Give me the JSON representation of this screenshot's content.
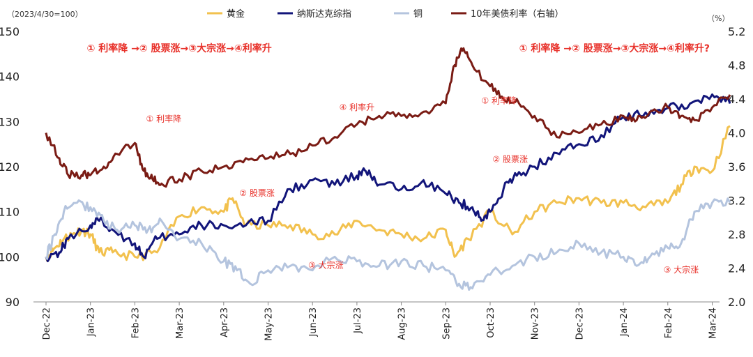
{
  "chart_data": {
    "type": "line",
    "index_note": "（2023/4/30=100）",
    "right_unit": "（%）",
    "x_tick_labels": [
      "Dec-22",
      "Jan-23",
      "Feb-23",
      "Mar-23",
      "Apr-23",
      "May-23",
      "Jun-23",
      "Jul-23",
      "Aug-23",
      "Sep-23",
      "Oct-23",
      "Nov-23",
      "Dec-23",
      "Jan-24",
      "Feb-24",
      "Mar-24"
    ],
    "left_axis": {
      "min": 90,
      "max": 150,
      "ticks": [
        90,
        100,
        110,
        120,
        130,
        140,
        150
      ]
    },
    "right_axis": {
      "min": 2.0,
      "max": 5.2,
      "ticks": [
        "2.0",
        "2.4",
        "2.8",
        "3.2",
        "3.6",
        "4.0",
        "4.4",
        "4.8",
        "5.2"
      ]
    },
    "legend_position": "top",
    "colors": {
      "gold": "#f2c14e",
      "nasdaq": "#12157a",
      "copper": "#b4c4de",
      "yield": "#7a1b14",
      "annotation": "#e8312a"
    },
    "series": [
      {
        "name": "黄金",
        "axis": "left",
        "key": "gold",
        "x": [
          0,
          0.2,
          0.4,
          0.6,
          0.8,
          1,
          1.2,
          1.5,
          2,
          2.5,
          3,
          3.5,
          4,
          4.2,
          4.5,
          5,
          5.5,
          6,
          6.5,
          7,
          7.5,
          8,
          8.5,
          9,
          9.2,
          9.5,
          10,
          10.5,
          11,
          11.5,
          12,
          12.5,
          13,
          13.5,
          14,
          14.3,
          14.6,
          15,
          15.4
        ],
        "values": [
          100,
          102,
          104,
          105,
          106,
          105,
          101,
          101,
          100,
          101,
          109,
          111,
          110,
          113,
          107,
          107,
          107,
          105,
          105,
          108,
          106,
          105,
          104,
          106,
          100,
          104,
          110,
          105,
          110,
          112,
          113,
          112,
          112,
          111,
          112,
          116,
          120,
          119,
          129
        ]
      },
      {
        "name": "纳斯达克综指",
        "axis": "left",
        "key": "nasdaq",
        "x": [
          0,
          0.3,
          0.5,
          1,
          1.2,
          1.5,
          2,
          2.2,
          2.5,
          3,
          3.5,
          4,
          4.5,
          5,
          5.5,
          6,
          6.5,
          7,
          7.2,
          7.5,
          8,
          8.5,
          9,
          9.3,
          9.6,
          9.8,
          10,
          10.3,
          10.6,
          11,
          11.5,
          12,
          12.5,
          13,
          13.5,
          14,
          14.5,
          15,
          15.4
        ],
        "values": [
          100,
          101,
          104,
          107,
          108,
          106,
          103,
          100,
          104,
          105,
          107,
          107,
          107,
          108,
          115,
          117,
          116,
          118,
          119,
          116,
          115,
          117,
          114,
          112,
          111,
          108,
          110,
          115,
          118,
          120,
          123,
          125,
          127,
          131,
          132,
          133,
          134,
          136,
          134
        ]
      },
      {
        "name": "铜",
        "axis": "left",
        "key": "copper",
        "x": [
          0,
          0.2,
          0.4,
          0.7,
          1,
          1.3,
          1.6,
          2,
          2.3,
          2.6,
          3,
          3.5,
          4,
          4.3,
          4.6,
          5,
          5.5,
          6,
          6.5,
          7,
          7.5,
          8,
          8.5,
          9,
          9.3,
          9.6,
          10,
          10.5,
          11,
          11.5,
          12,
          12.5,
          13,
          13.3,
          13.6,
          14,
          14.3,
          14.6,
          15,
          15.4
        ],
        "values": [
          100,
          105,
          110,
          112,
          111,
          108,
          106,
          107,
          106,
          108,
          104,
          103,
          99,
          97,
          94,
          97,
          98,
          97,
          100,
          99,
          98,
          99,
          98,
          97,
          94,
          93,
          96,
          98,
          100,
          101,
          103,
          101,
          100,
          98,
          100,
          102,
          103,
          110,
          112,
          112
        ]
      },
      {
        "name": "10年美债利率（右轴）",
        "axis": "right",
        "key": "yield",
        "x": [
          0,
          0.3,
          0.5,
          0.8,
          1,
          1.3,
          1.6,
          2,
          2.2,
          2.4,
          2.6,
          3,
          3.5,
          4,
          4.5,
          5,
          5.5,
          6,
          6.5,
          7,
          7.5,
          8,
          8.5,
          9,
          9.2,
          9.4,
          9.6,
          10,
          10.3,
          10.6,
          11,
          11.5,
          12,
          12.5,
          13,
          13.3,
          13.6,
          14,
          14.3,
          14.6,
          15,
          15.4
        ],
        "values": [
          4.0,
          3.7,
          3.5,
          3.5,
          3.5,
          3.6,
          3.75,
          3.88,
          3.55,
          3.45,
          3.4,
          3.45,
          3.55,
          3.6,
          3.7,
          3.7,
          3.75,
          3.85,
          3.95,
          4.1,
          4.2,
          4.2,
          4.25,
          4.35,
          4.8,
          5.0,
          4.8,
          4.55,
          4.4,
          4.4,
          4.2,
          3.95,
          4.0,
          4.1,
          4.2,
          4.15,
          4.25,
          4.3,
          4.2,
          4.15,
          4.3,
          4.45
        ]
      }
    ],
    "annotations": [
      {
        "text": "① 利率降 →② 股票涨→③大宗涨→④利率升",
        "x": 3.0,
        "yl": 145.5,
        "anchor": "middle",
        "bold": true
      },
      {
        "text": "① 利率降 →② 股票涨→③大宗涨→④利率升?",
        "x": 12.8,
        "yl": 145.5,
        "anchor": "middle",
        "bold": true
      },
      {
        "text": "① 利率降",
        "x": 2.65,
        "yl": 130.0,
        "anchor": "middle",
        "bold": false
      },
      {
        "text": "④ 利率升",
        "x": 7.0,
        "yl": 132.5,
        "anchor": "middle",
        "bold": false
      },
      {
        "text": "① 利率降",
        "x": 10.2,
        "yl": 134.0,
        "anchor": "middle",
        "bold": false
      },
      {
        "text": "② 股票涨",
        "x": 10.45,
        "yl": 121.0,
        "anchor": "middle",
        "bold": false
      },
      {
        "text": "② 股票涨",
        "x": 4.75,
        "yl": 113.5,
        "anchor": "middle",
        "bold": false
      },
      {
        "text": "③ 大宗涨",
        "x": 6.3,
        "yl": 97.5,
        "anchor": "middle",
        "bold": false
      },
      {
        "text": "③ 大宗涨",
        "x": 14.3,
        "yl": 96.5,
        "anchor": "middle",
        "bold": false
      }
    ]
  }
}
